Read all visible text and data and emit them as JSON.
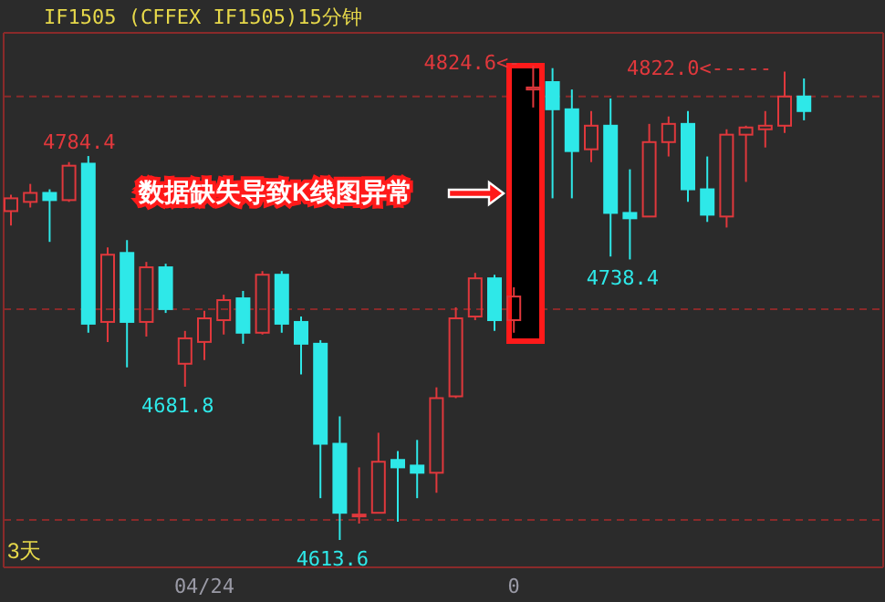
{
  "chart_data": {
    "type": "candlestick",
    "title": "IF1505    (CFFEX IF1505)15分钟",
    "categories": [
      null,
      null,
      null,
      null,
      null,
      null,
      null,
      null,
      null,
      null,
      "04/24",
      null,
      null,
      null,
      null,
      null,
      null,
      null,
      null,
      null,
      null,
      null,
      null,
      null,
      null,
      null,
      "0",
      null,
      null,
      null,
      null,
      null,
      null,
      null,
      null,
      null,
      null,
      null,
      null,
      null,
      null,
      null
    ],
    "ohlc": [
      [
        4759.9,
        4767.2,
        4753.5,
        4765.6
      ],
      [
        4764.0,
        4772.0,
        4761.5,
        4768.0
      ],
      [
        4768.0,
        4769.6,
        4746.2,
        4764.8
      ],
      [
        4764.8,
        4781.7,
        4764.0,
        4780.1
      ],
      [
        4781.0,
        4784.4,
        4705.8,
        4709.8
      ],
      [
        4710.6,
        4743.8,
        4701.7,
        4740.5
      ],
      [
        4741.3,
        4747.0,
        4690.4,
        4710.6
      ],
      [
        4710.6,
        4737.3,
        4704.1,
        4734.9
      ],
      [
        4734.9,
        4736.5,
        4714.6,
        4716.3
      ],
      [
        4692.0,
        4706.6,
        4681.8,
        4703.3
      ],
      [
        4701.7,
        4715.5,
        4693.6,
        4712.2
      ],
      [
        4711.4,
        4722.7,
        4705.0,
        4720.3
      ],
      [
        4721.1,
        4724.4,
        4700.9,
        4705.8
      ],
      [
        4705.8,
        4733.2,
        4705.0,
        4731.6
      ],
      [
        4731.6,
        4733.2,
        4705.8,
        4709.8
      ],
      [
        4710.6,
        4713.0,
        4687.2,
        4700.9
      ],
      [
        4700.9,
        4702.5,
        4632.2,
        4656.4
      ],
      [
        4656.4,
        4668.6,
        4613.6,
        4625.7
      ],
      [
        4624.1,
        4645.9,
        4620.9,
        4624.9
      ],
      [
        4625.7,
        4661.3,
        4625.7,
        4648.4
      ],
      [
        4649.2,
        4653.2,
        4621.7,
        4645.9
      ],
      [
        4646.7,
        4658.1,
        4632.2,
        4643.5
      ],
      [
        4643.5,
        4681.5,
        4634.6,
        4676.7
      ],
      [
        4677.5,
        4717.1,
        4676.7,
        4712.2
      ],
      [
        4713.0,
        4732.4,
        4711.4,
        4730.0
      ],
      [
        4730.0,
        4731.6,
        4706.6,
        4711.4
      ],
      [
        4711.4,
        4726.0,
        4705.8,
        4721.9
      ],
      [
        4814.0,
        4824.6,
        4806.0,
        4814.9
      ],
      [
        4817.3,
        4823.5,
        4765.6,
        4805.2
      ],
      [
        4805.2,
        4814.0,
        4765.6,
        4786.6
      ],
      [
        4787.4,
        4804.4,
        4781.7,
        4797.9
      ],
      [
        4797.9,
        4810.0,
        4739.7,
        4759.1
      ],
      [
        4759.1,
        4778.5,
        4738.4,
        4756.7
      ],
      [
        4757.5,
        4798.7,
        4757.5,
        4790.6
      ],
      [
        4790.6,
        4802.0,
        4784.2,
        4798.7
      ],
      [
        4798.7,
        4804.4,
        4764.0,
        4769.6
      ],
      [
        4769.6,
        4784.2,
        4755.1,
        4758.3
      ],
      [
        4757.5,
        4796.3,
        4752.6,
        4793.9
      ],
      [
        4793.9,
        4797.9,
        4772.9,
        4797.1
      ],
      [
        4796.3,
        4804.4,
        4788.2,
        4797.9
      ],
      [
        4797.9,
        4822.0,
        4794.7,
        4810.9
      ],
      [
        4810.9,
        4818.9,
        4800.3,
        4804.4
      ]
    ],
    "ref_lines": [
      {
        "axis": "y",
        "value": 4810.9,
        "color": "#8a2a2a",
        "line_style": "dashed"
      },
      {
        "axis": "y",
        "value": 4716.3,
        "color": "#8a2a2a",
        "line_style": "dashed"
      },
      {
        "axis": "y",
        "value": 4622.5,
        "color": "#8a2a2a",
        "line_style": "dashed"
      }
    ],
    "annotations": [
      {
        "text": "4784.4",
        "y": 4784.4
      },
      "4824.6<-",
      "4822.0<-----",
      {
        "text": "4738.4",
        "y": 4738.4
      },
      {
        "text": "4681.8",
        "y": 4681.8
      },
      {
        "text": "4613.6",
        "y": 4613.6
      },
      "数据缺失导致K线图异常",
      "3天"
    ]
  }
}
